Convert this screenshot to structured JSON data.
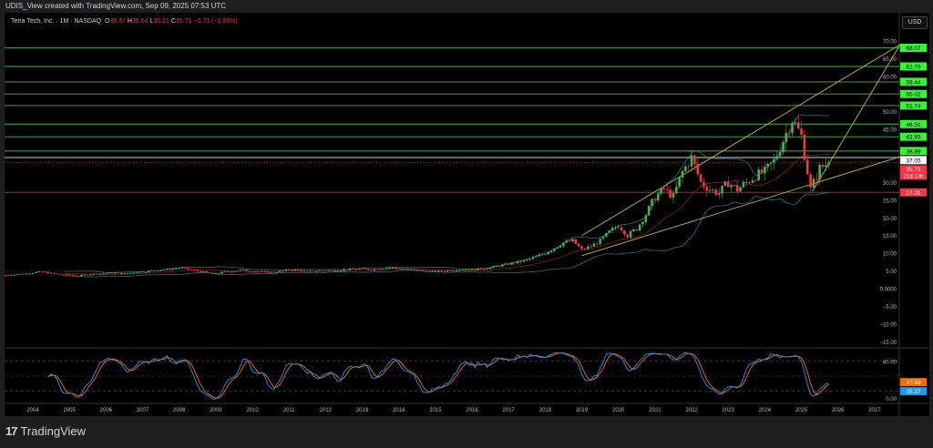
{
  "header": {
    "credit": "UDIS_View created with TradingView.com, Sep 09, 2025 07:53 UTC"
  },
  "legend": {
    "symbol": "Tetra Tech, Inc. · 1M · NASDAQ",
    "open_label": "O",
    "open": "36.37",
    "high_label": "H",
    "high": "36.64",
    "low_label": "L",
    "low": "35.21",
    "close_label": "C",
    "close": "35.71",
    "change": "−0.71 (−1.95%)"
  },
  "currency_button": "USD",
  "brand": {
    "logo": "17",
    "name": "TradingView"
  },
  "colors": {
    "up": "#4caf50",
    "down": "#f23645",
    "level_line": "#4caf50",
    "level_badge": "#3cf03c",
    "trend": "#c9b637",
    "bands": "#2b6f7a",
    "basis": "#7a1f1f",
    "rsi": "#2196f3",
    "signal": "#ff6d00",
    "support": "#b22222"
  },
  "chart_data": {
    "type": "candlestick",
    "timeframe": "1M",
    "x_ticks": [
      "2004",
      "2005",
      "2006",
      "2007",
      "2008",
      "2009",
      "2010",
      "2011",
      "2012",
      "2013",
      "2014",
      "2015",
      "2016",
      "2017",
      "2018",
      "2019",
      "2020",
      "2021",
      "2022",
      "2023",
      "2024",
      "2025",
      "2026",
      "2027"
    ],
    "y_ticks": [
      "70.00",
      "65.00",
      "60.00",
      "50.00",
      "45.00",
      "30.00",
      "25.00",
      "20.00",
      "15.00",
      "10.00",
      "5.00",
      "0.0000",
      "−5.00",
      "−10.00",
      "−15.00"
    ],
    "ylim": [
      -17,
      72
    ],
    "price_series_quarterly": {
      "start": "2003-Q2",
      "closes": [
        3.8,
        4.0,
        4.2,
        4.5,
        4.8,
        4.3,
        4.0,
        3.8,
        3.6,
        4.0,
        4.2,
        4.3,
        4.5,
        4.2,
        4.6,
        4.8,
        5.0,
        5.3,
        5.5,
        5.8,
        5.5,
        5.0,
        4.5,
        4.2,
        4.8,
        5.0,
        5.2,
        5.0,
        4.8,
        4.6,
        4.9,
        5.3,
        5.2,
        4.8,
        5.0,
        5.2,
        5.0,
        5.4,
        5.5,
        5.6,
        5.3,
        5.8,
        5.9,
        5.7,
        5.4,
        5.2,
        5.0,
        4.9,
        5.0,
        5.3,
        5.5,
        5.4,
        5.6,
        6.0,
        6.5,
        7.0,
        7.5,
        8.0,
        9.0,
        10.0,
        11.5,
        13.0,
        13.5,
        11.0,
        12.0,
        13.5,
        16.0,
        18.0,
        15.0,
        17.0,
        21.0,
        26.0,
        28.0,
        26.0,
        33.0,
        37.0,
        30.0,
        28.0,
        27.0,
        30.0,
        28.0,
        30.0,
        32.0,
        33.0,
        36.0,
        42.0,
        48.0,
        43.0,
        28.0,
        34.0,
        35.71
      ]
    },
    "levels": [
      {
        "value": 68.07,
        "label": "68.07",
        "kind": "resistance"
      },
      {
        "value": 62.79,
        "label": "62.79",
        "kind": "resistance"
      },
      {
        "value": 58.44,
        "label": "58.44",
        "kind": "resistance"
      },
      {
        "value": 55.02,
        "label": "55.02",
        "kind": "resistance"
      },
      {
        "value": 51.74,
        "label": "51.74",
        "kind": "resistance"
      },
      {
        "value": 46.51,
        "label": "46.51",
        "kind": "resistance"
      },
      {
        "value": 42.93,
        "label": "42.93",
        "kind": "resistance"
      },
      {
        "value": 38.89,
        "label": "38.89",
        "kind": "resistance"
      },
      {
        "value": 37.05,
        "label": "37.05",
        "kind": "high"
      },
      {
        "value": 27.21,
        "label": "27.21",
        "kind": "support"
      }
    ],
    "last_price": {
      "value": 35.71,
      "label": "35.71",
      "countdown": "21d 13h"
    },
    "trendlines": [
      {
        "from": [
          2019.0,
          15.0
        ],
        "to": [
          2027.7,
          69.0
        ]
      },
      {
        "from": [
          2019.0,
          9.3
        ],
        "to": [
          2027.7,
          37.3
        ]
      },
      {
        "from": [
          2025.3,
          27.5
        ],
        "to": [
          2027.7,
          69.0
        ]
      }
    ],
    "oscillator": {
      "y_ticks": [
        "80.00",
        "0.00"
      ],
      "levels": [
        80,
        50,
        20
      ],
      "k_value": 35.27,
      "k_label": "35.27",
      "d_value": 37.69,
      "d_label": "37.69"
    }
  }
}
